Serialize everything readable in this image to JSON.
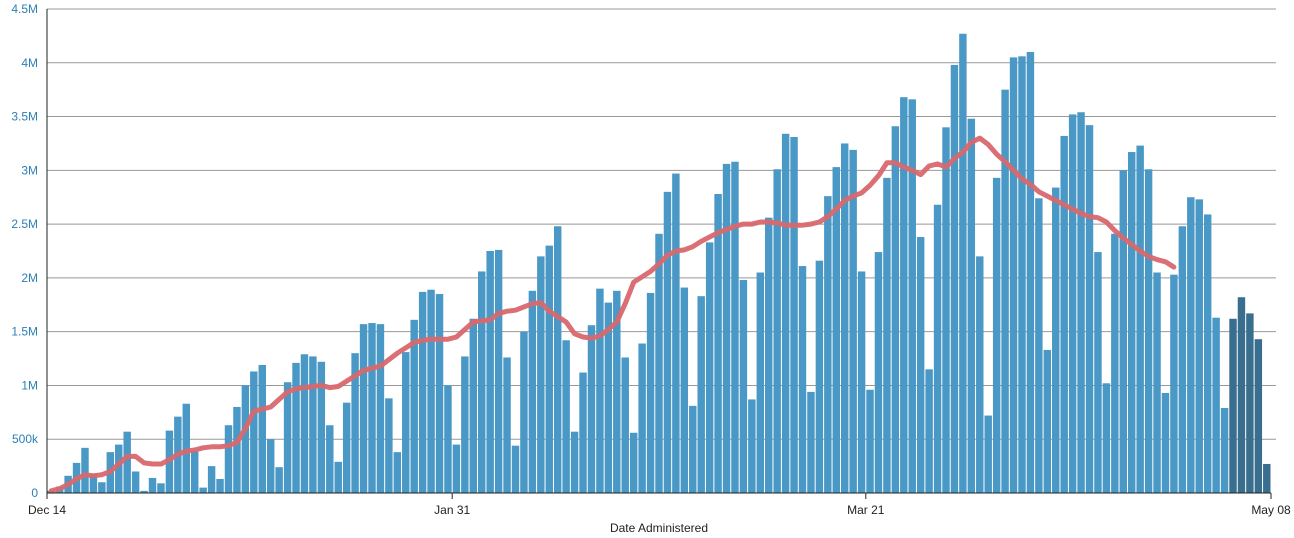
{
  "chart_data": {
    "type": "bar",
    "xlabel": "Date Administered",
    "ylabel": "",
    "ylim": [
      0,
      4500000
    ],
    "yticks": [
      {
        "value": 0,
        "label": "0"
      },
      {
        "value": 500000,
        "label": "500k"
      },
      {
        "value": 1000000,
        "label": "1M"
      },
      {
        "value": 1500000,
        "label": "1.5M"
      },
      {
        "value": 2000000,
        "label": "2M"
      },
      {
        "value": 2500000,
        "label": "2.5M"
      },
      {
        "value": 3000000,
        "label": "3M"
      },
      {
        "value": 3500000,
        "label": "3.5M"
      },
      {
        "value": 4000000,
        "label": "4M"
      },
      {
        "value": 4500000,
        "label": "4.5M"
      }
    ],
    "xticks": [
      {
        "date": "2020-12-14",
        "label": "Dec 14"
      },
      {
        "date": "2021-01-31",
        "label": "Jan 31"
      },
      {
        "date": "2021-03-21",
        "label": "Mar 21"
      },
      {
        "date": "2021-05-08",
        "label": "May 08"
      }
    ],
    "x_start": "2020-12-14",
    "grid": true,
    "colors": {
      "bar": "#4a98c6",
      "bar_recent": "#3a6e8f",
      "line": "#d8686e"
    },
    "series": [
      {
        "kind": "bar",
        "values": [
          20000,
          60000,
          160000,
          280000,
          420000,
          180000,
          100000,
          380000,
          450000,
          570000,
          200000,
          20000,
          140000,
          90000,
          580000,
          710000,
          830000,
          390000,
          50000,
          250000,
          130000,
          630000,
          800000,
          1000000,
          1130000,
          1190000,
          500000,
          240000,
          1030000,
          1210000,
          1290000,
          1270000,
          1220000,
          630000,
          290000,
          840000,
          1300000,
          1570000,
          1580000,
          1570000,
          880000,
          380000,
          1310000,
          1610000,
          1870000,
          1890000,
          1850000,
          1000000,
          450000,
          1270000,
          1620000,
          2060000,
          2250000,
          2260000,
          1260000,
          440000,
          1500000,
          1880000,
          2200000,
          2300000,
          2480000,
          1420000,
          570000,
          1120000,
          1560000,
          1900000,
          1770000,
          1880000,
          1260000,
          560000,
          1390000,
          1860000,
          2410000,
          2800000,
          2970000,
          1910000,
          810000,
          1830000,
          2330000,
          2780000,
          3060000,
          3080000,
          1980000,
          870000,
          2050000,
          2560000,
          3010000,
          3340000,
          3310000,
          2110000,
          940000,
          2160000,
          2760000,
          3030000,
          3250000,
          3190000,
          2060000,
          960000,
          2240000,
          2930000,
          3410000,
          3680000,
          3660000,
          2380000,
          1150000,
          2680000,
          3400000,
          3980000,
          4270000,
          3480000,
          2200000,
          720000,
          2930000,
          3750000,
          4050000,
          4060000,
          4100000,
          2740000,
          1330000,
          2840000,
          3320000,
          3520000,
          3540000,
          3420000,
          2240000,
          1020000,
          2410000,
          3000000,
          3170000,
          3230000,
          3010000,
          2050000,
          930000,
          2030000,
          2480000,
          2750000,
          2730000,
          2590000,
          1630000,
          790000,
          1620000,
          1820000,
          1670000,
          1430000,
          270000
        ]
      },
      {
        "kind": "line",
        "values": [
          20000,
          40000,
          80000,
          130000,
          170000,
          160000,
          170000,
          200000,
          270000,
          340000,
          340000,
          280000,
          270000,
          270000,
          310000,
          360000,
          390000,
          400000,
          420000,
          430000,
          430000,
          440000,
          470000,
          600000,
          760000,
          780000,
          800000,
          870000,
          940000,
          970000,
          980000,
          990000,
          1000000,
          980000,
          990000,
          1040000,
          1090000,
          1140000,
          1160000,
          1180000,
          1240000,
          1300000,
          1350000,
          1400000,
          1420000,
          1430000,
          1430000,
          1430000,
          1450000,
          1520000,
          1590000,
          1600000,
          1610000,
          1670000,
          1690000,
          1700000,
          1730000,
          1760000,
          1770000,
          1690000,
          1640000,
          1590000,
          1480000,
          1450000,
          1440000,
          1460000,
          1520000,
          1590000,
          1760000,
          1960000,
          2010000,
          2060000,
          2130000,
          2210000,
          2250000,
          2260000,
          2290000,
          2340000,
          2380000,
          2420000,
          2450000,
          2480000,
          2500000,
          2500000,
          2520000,
          2520000,
          2510000,
          2490000,
          2490000,
          2490000,
          2500000,
          2520000,
          2570000,
          2640000,
          2720000,
          2760000,
          2790000,
          2860000,
          2950000,
          3070000,
          3070000,
          3030000,
          3000000,
          2960000,
          3040000,
          3060000,
          3030000,
          3110000,
          3170000,
          3260000,
          3300000,
          3240000,
          3150000,
          3080000,
          3000000,
          2920000,
          2870000,
          2800000,
          2760000,
          2720000,
          2680000,
          2640000,
          2600000,
          2570000,
          2560000,
          2520000,
          2440000,
          2370000,
          2310000,
          2250000,
          2200000,
          2170000,
          2150000,
          2100000
        ]
      }
    ]
  }
}
